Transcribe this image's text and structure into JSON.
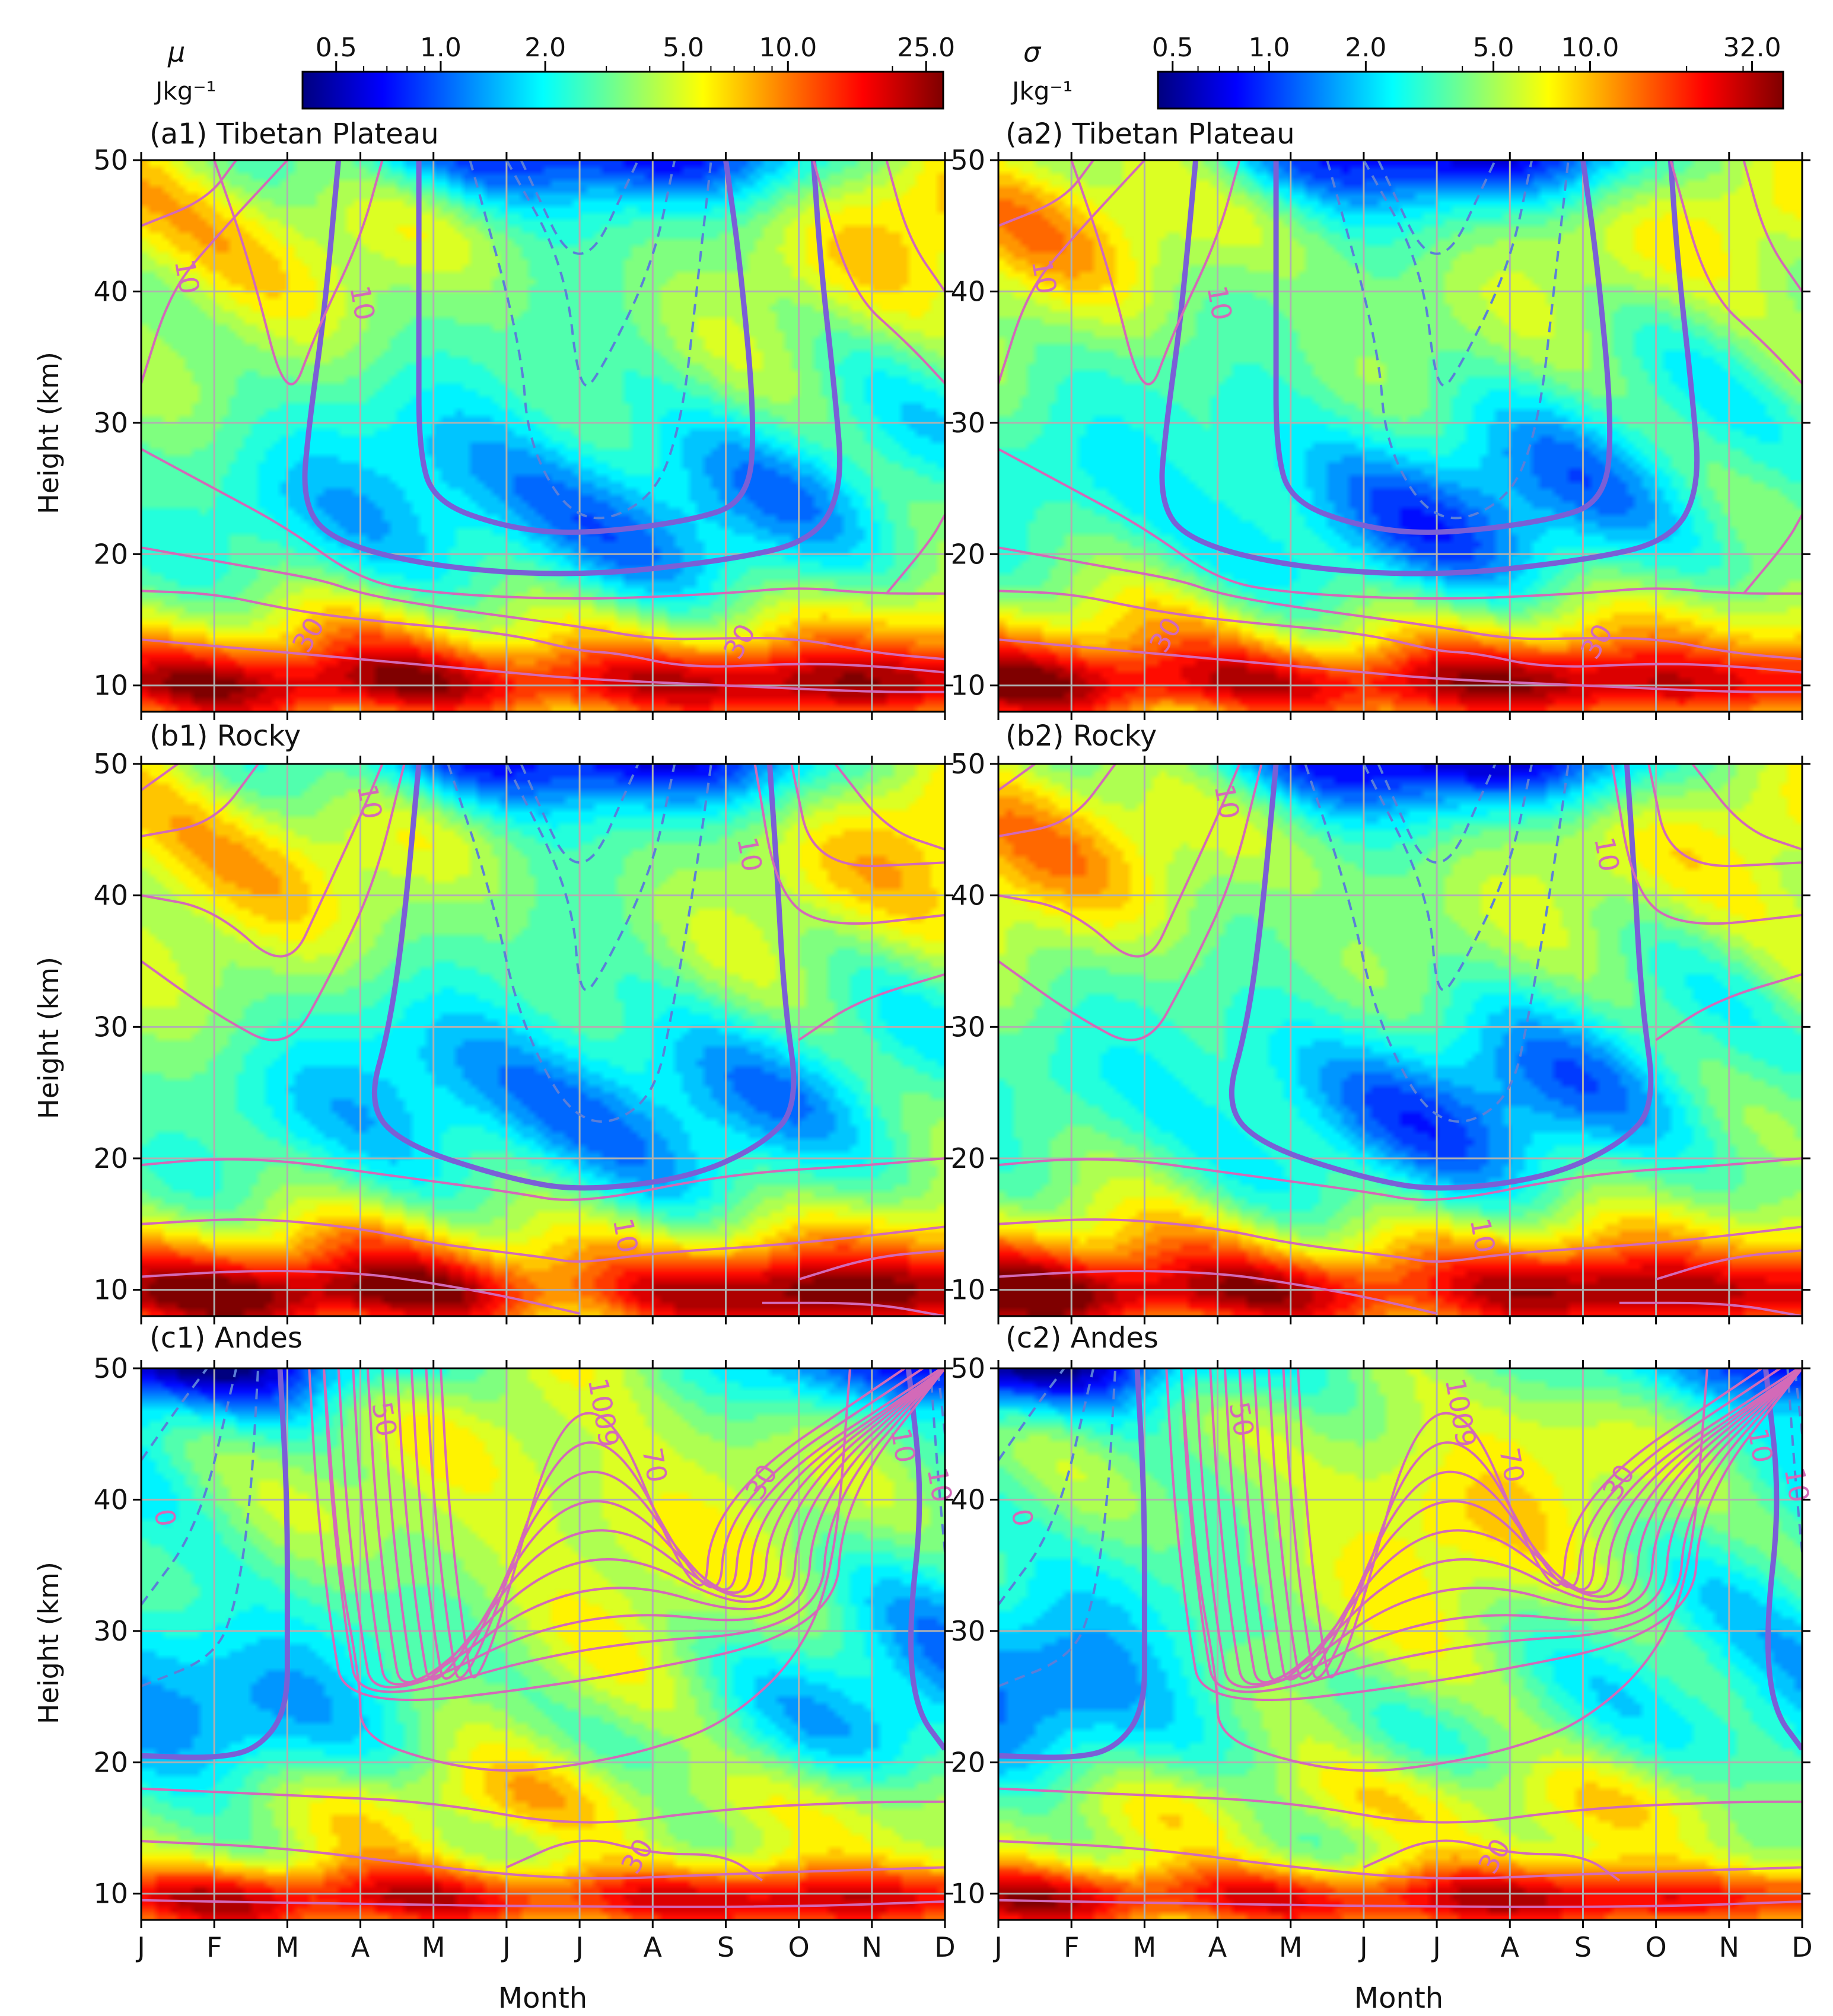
{
  "colorbars": [
    {
      "symbol": "μ",
      "unit": "Jkg⁻¹",
      "tick_labels": [
        "0.5",
        "1.0",
        "2.0",
        "5.0",
        "10.0",
        "25.0"
      ],
      "tick_values": [
        0.5,
        1.0,
        2.0,
        5.0,
        10.0,
        25.0
      ],
      "range": [
        0.4,
        28.0
      ],
      "scale": "log"
    },
    {
      "symbol": "σ",
      "unit": "Jkg⁻¹",
      "tick_labels": [
        "0.5",
        "1.0",
        "2.0",
        "5.0",
        "10.0",
        "32.0"
      ],
      "tick_values": [
        0.5,
        1.0,
        2.0,
        5.0,
        10.0,
        32.0
      ],
      "range": [
        0.45,
        40.0
      ],
      "scale": "log"
    }
  ],
  "colormap": [
    "#00007f",
    "#0000ff",
    "#007fff",
    "#00ffff",
    "#7fff7f",
    "#ffff00",
    "#ff7f00",
    "#ff0000",
    "#7f0000"
  ],
  "contour_colors": {
    "solid": "#d36ab8",
    "bold": "#7a5fd6",
    "dashed": "#5b7fd8"
  },
  "chart_data": [
    {
      "id": "a1",
      "label": "(a1) Tibetan Plateau",
      "type": "heatmap",
      "variable": "μ",
      "region": "tibet",
      "contour_labels": [
        {
          "text": "10",
          "x": 1.5,
          "y": 41
        },
        {
          "text": "10",
          "x": 3.9,
          "y": 39
        },
        {
          "text": "30",
          "x": 3.4,
          "y": 13.5
        },
        {
          "text": "30",
          "x": 9.3,
          "y": 13
        }
      ],
      "xlabel": "",
      "ylabel": "Height (km)",
      "ylim": [
        8,
        50
      ],
      "xlim": [
        1,
        12
      ]
    },
    {
      "id": "a2",
      "label": "(a2) Tibetan Plateau",
      "type": "heatmap",
      "variable": "σ",
      "region": "tibet",
      "contour_labels": [
        {
          "text": "10",
          "x": 1.5,
          "y": 41
        },
        {
          "text": "10",
          "x": 3.9,
          "y": 39
        },
        {
          "text": "30",
          "x": 3.4,
          "y": 13.5
        },
        {
          "text": "30",
          "x": 9.3,
          "y": 13
        }
      ],
      "xlabel": "",
      "ylabel": "",
      "ylim": [
        8,
        50
      ],
      "xlim": [
        1,
        12
      ]
    },
    {
      "id": "b1",
      "label": "(b1) Rocky",
      "type": "heatmap",
      "variable": "μ",
      "region": "rocky",
      "contour_labels": [
        {
          "text": "10",
          "x": 4.0,
          "y": 47
        },
        {
          "text": "10",
          "x": 9.2,
          "y": 43
        },
        {
          "text": "10",
          "x": 7.5,
          "y": 14
        }
      ],
      "xlabel": "",
      "ylabel": "Height (km)",
      "ylim": [
        8,
        50
      ],
      "xlim": [
        1,
        12
      ]
    },
    {
      "id": "b2",
      "label": "(b2) Rocky",
      "type": "heatmap",
      "variable": "σ",
      "region": "rocky",
      "contour_labels": [
        {
          "text": "10",
          "x": 4.0,
          "y": 47
        },
        {
          "text": "10",
          "x": 9.2,
          "y": 43
        },
        {
          "text": "10",
          "x": 7.5,
          "y": 14
        }
      ],
      "xlabel": "",
      "ylabel": "",
      "ylim": [
        8,
        50
      ],
      "xlim": [
        1,
        12
      ]
    },
    {
      "id": "c1",
      "label": "(c1) Andes",
      "type": "heatmap",
      "variable": "μ",
      "region": "andes",
      "contour_labels": [
        {
          "text": "0",
          "x": 1.2,
          "y": 38.5
        },
        {
          "text": "50",
          "x": 4.2,
          "y": 46
        },
        {
          "text": "1009",
          "x": 7.2,
          "y": 46.5
        },
        {
          "text": "70",
          "x": 7.9,
          "y": 42.5
        },
        {
          "text": "30",
          "x": 9.6,
          "y": 41
        },
        {
          "text": "10",
          "x": 11.3,
          "y": 44
        },
        {
          "text": "10",
          "x": 11.8,
          "y": 41
        },
        {
          "text": "30",
          "x": 7.9,
          "y": 12.5
        }
      ],
      "xlabel": "Month",
      "ylabel": "Height (km)",
      "ylim": [
        8,
        50
      ],
      "xlim": [
        1,
        12
      ]
    },
    {
      "id": "c2",
      "label": "(c2) Andes",
      "type": "heatmap",
      "variable": "σ",
      "region": "andes",
      "contour_labels": [
        {
          "text": "0",
          "x": 1.2,
          "y": 38.5
        },
        {
          "text": "50",
          "x": 4.2,
          "y": 46
        },
        {
          "text": "1009",
          "x": 7.2,
          "y": 46.5
        },
        {
          "text": "70",
          "x": 7.9,
          "y": 42.5
        },
        {
          "text": "30",
          "x": 9.6,
          "y": 41
        },
        {
          "text": "10",
          "x": 11.3,
          "y": 44
        },
        {
          "text": "10",
          "x": 11.8,
          "y": 41
        },
        {
          "text": "30",
          "x": 7.9,
          "y": 12.5
        }
      ],
      "xlabel": "Month",
      "ylabel": "",
      "ylim": [
        8,
        50
      ],
      "xlim": [
        1,
        12
      ]
    }
  ],
  "axes": {
    "x_ticks": [
      "J",
      "F",
      "M",
      "A",
      "M",
      "J",
      "J",
      "A",
      "S",
      "O",
      "N",
      "D"
    ],
    "y_ticks": [
      10,
      20,
      30,
      40,
      50
    ],
    "y_tick_labels": [
      "10",
      "20",
      "30",
      "40",
      "50"
    ],
    "xlabel": "Month",
    "ylabel": "Height (km)"
  }
}
